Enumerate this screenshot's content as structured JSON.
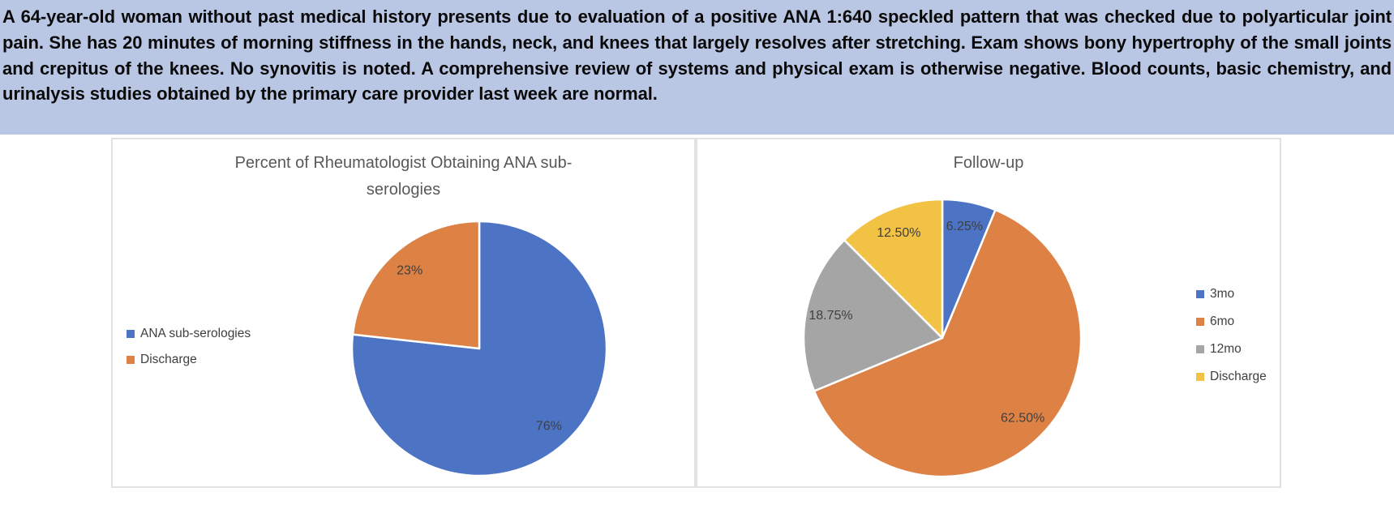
{
  "vignette": {
    "text": "A 64-year-old woman without past medical history presents due to evaluation of a positive ANA 1:640 speckled pattern that was checked due to polyarticular joint pain. She has 20 minutes of morning stiffness in the hands, neck, and knees that largely resolves after stretching. Exam shows bony hypertrophy of the small joints and crepitus of the knees. No synovitis is noted. A comprehensive review of systems and physical exam is otherwise negative. Blood counts, basic chemistry, and urinalysis studies obtained by the primary care provider last week are normal.",
    "highlight_color": "#b9c7e5"
  },
  "chart_data": [
    {
      "type": "pie",
      "title": "Percent of Rheumatologist Obtaining ANA sub-serologies",
      "legend_position": "left",
      "start_angle_deg": 0,
      "direction": "clockwise",
      "slices": [
        {
          "label": "ANA sub-serologies",
          "value": 76,
          "display": "76%",
          "color": "#4d73c4"
        },
        {
          "label": "Discharge",
          "value": 23,
          "display": "23%",
          "color": "#de8145"
        }
      ]
    },
    {
      "type": "pie",
      "title": "Follow-up",
      "legend_position": "right",
      "start_angle_deg": 0,
      "direction": "clockwise",
      "slices": [
        {
          "label": "3mo",
          "value": 6.25,
          "display": "6.25%",
          "color": "#4d73c4"
        },
        {
          "label": "6mo",
          "value": 62.5,
          "display": "62.50%",
          "color": "#de8145"
        },
        {
          "label": "12mo",
          "value": 18.75,
          "display": "18.75%",
          "color": "#a5a5a5"
        },
        {
          "label": "Discharge",
          "value": 12.5,
          "display": "12.50%",
          "color": "#f2c244"
        }
      ]
    }
  ]
}
